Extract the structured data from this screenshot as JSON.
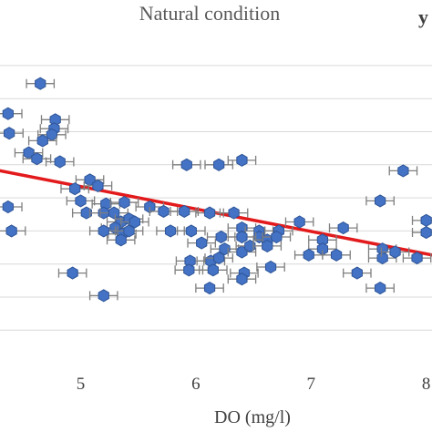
{
  "chart_data": {
    "type": "scatter",
    "title": "Natural condition",
    "corner_label": "y",
    "xlabel": "DO (mg/l)",
    "ylabel": "",
    "xlim": [
      4.3,
      8.05
    ],
    "ylim": [
      0,
      10
    ],
    "x_ticks": [
      "5",
      "6",
      "7",
      "8"
    ],
    "y_gridlines": [
      0.9,
      2.0,
      3.1,
      4.2,
      5.3,
      6.4,
      7.5,
      8.6,
      9.7
    ],
    "grid": "horizontal",
    "legend": "none",
    "colors": {
      "points": "#4472c4",
      "trendline": "#e31a1c",
      "error_bars": "#7f7f7f"
    },
    "trendline": {
      "x": [
        4.3,
        8.05
      ],
      "y": [
        6.2,
        3.4
      ]
    },
    "error_bar_half_width_x": 0.12,
    "series": [
      {
        "points": [
          {
            "x": 4.65,
            "y": 9.1
          },
          {
            "x": 4.37,
            "y": 8.1
          },
          {
            "x": 4.78,
            "y": 7.9
          },
          {
            "x": 4.77,
            "y": 7.6
          },
          {
            "x": 4.38,
            "y": 7.45
          },
          {
            "x": 4.75,
            "y": 7.4
          },
          {
            "x": 4.67,
            "y": 7.2
          },
          {
            "x": 4.55,
            "y": 6.8
          },
          {
            "x": 4.62,
            "y": 6.6
          },
          {
            "x": 4.82,
            "y": 6.5
          },
          {
            "x": 5.08,
            "y": 5.9
          },
          {
            "x": 5.15,
            "y": 5.7
          },
          {
            "x": 4.95,
            "y": 5.6
          },
          {
            "x": 5.0,
            "y": 5.2
          },
          {
            "x": 5.22,
            "y": 5.1
          },
          {
            "x": 5.38,
            "y": 5.15
          },
          {
            "x": 5.05,
            "y": 4.8
          },
          {
            "x": 5.2,
            "y": 4.8
          },
          {
            "x": 5.29,
            "y": 4.8
          },
          {
            "x": 5.35,
            "y": 4.5
          },
          {
            "x": 5.42,
            "y": 4.6
          },
          {
            "x": 5.47,
            "y": 4.5
          },
          {
            "x": 5.3,
            "y": 4.3
          },
          {
            "x": 5.36,
            "y": 4.1
          },
          {
            "x": 5.42,
            "y": 4.2
          },
          {
            "x": 5.2,
            "y": 4.2
          },
          {
            "x": 5.35,
            "y": 3.9
          },
          {
            "x": 4.4,
            "y": 4.2
          },
          {
            "x": 4.37,
            "y": 5.0
          },
          {
            "x": 5.6,
            "y": 5.0
          },
          {
            "x": 5.72,
            "y": 4.85
          },
          {
            "x": 5.9,
            "y": 4.85
          },
          {
            "x": 5.78,
            "y": 4.2
          },
          {
            "x": 5.96,
            "y": 4.2
          },
          {
            "x": 5.92,
            "y": 6.4
          },
          {
            "x": 6.2,
            "y": 6.4
          },
          {
            "x": 6.4,
            "y": 6.55
          },
          {
            "x": 6.12,
            "y": 4.8
          },
          {
            "x": 6.33,
            "y": 4.8
          },
          {
            "x": 6.4,
            "y": 4.3
          },
          {
            "x": 6.55,
            "y": 4.2
          },
          {
            "x": 6.55,
            "y": 4.0
          },
          {
            "x": 6.62,
            "y": 3.9
          },
          {
            "x": 6.4,
            "y": 4.0
          },
          {
            "x": 6.22,
            "y": 4.0
          },
          {
            "x": 6.25,
            "y": 3.6
          },
          {
            "x": 6.05,
            "y": 3.8
          },
          {
            "x": 5.95,
            "y": 3.2
          },
          {
            "x": 6.13,
            "y": 3.2
          },
          {
            "x": 6.2,
            "y": 3.3
          },
          {
            "x": 6.4,
            "y": 3.5
          },
          {
            "x": 6.47,
            "y": 3.7
          },
          {
            "x": 6.62,
            "y": 3.7
          },
          {
            "x": 6.9,
            "y": 4.5
          },
          {
            "x": 6.72,
            "y": 4.2
          },
          {
            "x": 6.7,
            "y": 4.0
          },
          {
            "x": 7.1,
            "y": 3.9
          },
          {
            "x": 7.1,
            "y": 3.6
          },
          {
            "x": 7.28,
            "y": 4.3
          },
          {
            "x": 7.22,
            "y": 3.4
          },
          {
            "x": 6.98,
            "y": 3.4
          },
          {
            "x": 6.65,
            "y": 3.0
          },
          {
            "x": 6.42,
            "y": 2.8
          },
          {
            "x": 6.4,
            "y": 2.6
          },
          {
            "x": 6.15,
            "y": 2.9
          },
          {
            "x": 6.12,
            "y": 2.3
          },
          {
            "x": 5.94,
            "y": 2.9
          },
          {
            "x": 4.93,
            "y": 2.8
          },
          {
            "x": 5.2,
            "y": 2.05
          },
          {
            "x": 7.4,
            "y": 2.8
          },
          {
            "x": 7.6,
            "y": 5.2
          },
          {
            "x": 7.8,
            "y": 6.2
          },
          {
            "x": 7.62,
            "y": 3.6
          },
          {
            "x": 7.62,
            "y": 3.3
          },
          {
            "x": 7.73,
            "y": 3.5
          },
          {
            "x": 7.6,
            "y": 2.3
          },
          {
            "x": 8.0,
            "y": 4.55
          },
          {
            "x": 8.0,
            "y": 4.15
          },
          {
            "x": 7.92,
            "y": 3.3
          }
        ]
      }
    ]
  }
}
